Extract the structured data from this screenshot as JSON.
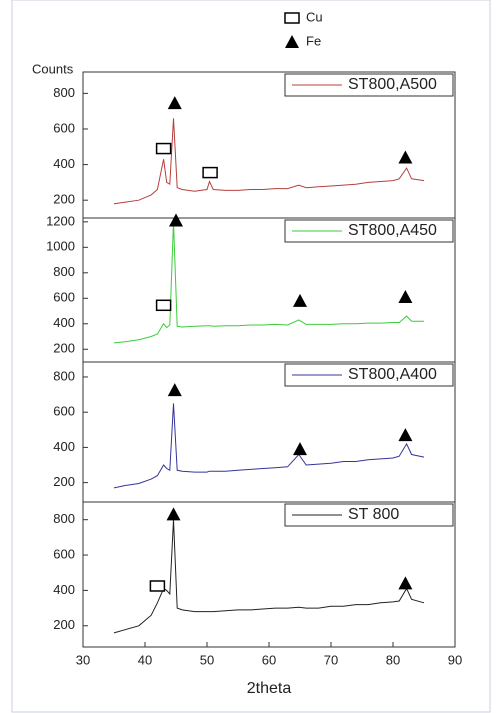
{
  "chart_data": [
    {
      "type": "line",
      "y_label": "Counts",
      "marker_legend": [
        {
          "name": "Cu",
          "marker": "square"
        },
        {
          "name": "Fe",
          "marker": "triangle"
        }
      ],
      "xlim": [
        30,
        90
      ],
      "ylim": [
        100,
        920
      ],
      "yticks": [
        200,
        400,
        600,
        800
      ],
      "series": [
        {
          "name": "ST800,A500",
          "color": "#b5403c",
          "x": [
            35,
            37,
            39,
            41,
            42,
            43,
            43.5,
            44,
            44.6,
            45.2,
            46,
            48,
            50,
            50.4,
            51,
            53,
            55,
            57,
            59,
            61,
            63,
            64.8,
            66,
            68,
            70,
            72,
            74,
            76,
            78,
            80,
            81,
            82.2,
            83,
            85
          ],
          "values": [
            180,
            190,
            200,
            230,
            260,
            430,
            300,
            290,
            660,
            270,
            260,
            250,
            260,
            305,
            260,
            255,
            255,
            260,
            260,
            265,
            265,
            285,
            270,
            275,
            280,
            285,
            290,
            300,
            305,
            310,
            320,
            380,
            320,
            310
          ]
        }
      ],
      "annotations": [
        {
          "marker": "Cu",
          "x": 43,
          "y": 490
        },
        {
          "marker": "Fe",
          "x": 44.8,
          "y": 745
        },
        {
          "marker": "Cu",
          "x": 50.5,
          "y": 355
        },
        {
          "marker": "Fe",
          "x": 82,
          "y": 440
        }
      ]
    },
    {
      "type": "line",
      "xlim": [
        30,
        90
      ],
      "ylim": [
        100,
        1230
      ],
      "yticks": [
        200,
        400,
        600,
        800,
        1000,
        1200
      ],
      "series": [
        {
          "name": "ST800,A450",
          "color": "#3ccc3c",
          "x": [
            35,
            37,
            39,
            41,
            42,
            43,
            43.5,
            44,
            44.6,
            45.2,
            46,
            48,
            50,
            50.4,
            51,
            53,
            55,
            57,
            59,
            61,
            63,
            64.8,
            66,
            68,
            70,
            72,
            74,
            76,
            78,
            80,
            81,
            82.2,
            83,
            85
          ],
          "values": [
            250,
            260,
            275,
            300,
            320,
            400,
            370,
            390,
            1200,
            380,
            375,
            380,
            385,
            385,
            380,
            385,
            385,
            390,
            390,
            395,
            390,
            430,
            395,
            395,
            395,
            400,
            400,
            405,
            405,
            410,
            410,
            460,
            420,
            420
          ]
        }
      ],
      "annotations": [
        {
          "marker": "Cu",
          "x": 43,
          "y": 545
        },
        {
          "marker": "Fe",
          "x": 45,
          "y": 1210
        },
        {
          "marker": "Fe",
          "x": 65,
          "y": 580
        },
        {
          "marker": "Fe",
          "x": 82,
          "y": 610
        }
      ]
    },
    {
      "type": "line",
      "xlim": [
        30,
        90
      ],
      "ylim": [
        90,
        885
      ],
      "yticks": [
        200,
        400,
        600,
        800
      ],
      "series": [
        {
          "name": "ST800,A400",
          "color": "#34349a",
          "x": [
            35,
            37,
            39,
            41,
            42,
            43,
            43.5,
            44,
            44.6,
            45.2,
            46,
            48,
            50,
            50.4,
            51,
            53,
            55,
            57,
            59,
            61,
            63,
            64.8,
            66,
            68,
            70,
            72,
            74,
            76,
            78,
            80,
            81,
            82.2,
            83,
            85
          ],
          "values": [
            170,
            185,
            195,
            220,
            240,
            300,
            280,
            270,
            650,
            270,
            265,
            260,
            260,
            265,
            265,
            265,
            270,
            275,
            280,
            285,
            290,
            360,
            300,
            305,
            310,
            320,
            320,
            330,
            335,
            340,
            350,
            420,
            360,
            345
          ]
        }
      ],
      "annotations": [
        {
          "marker": "Fe",
          "x": 44.8,
          "y": 725
        },
        {
          "marker": "Fe",
          "x": 65,
          "y": 390
        },
        {
          "marker": "Fe",
          "x": 82,
          "y": 470
        }
      ]
    },
    {
      "type": "line",
      "x_label": "2theta",
      "xlim": [
        30,
        90
      ],
      "xticks": [
        30,
        40,
        50,
        60,
        70,
        80,
        90
      ],
      "ylim": [
        80,
        900
      ],
      "yticks": [
        200,
        400,
        600,
        800
      ],
      "series": [
        {
          "name": "ST 800",
          "color": "#222222",
          "x": [
            35,
            37,
            39,
            41,
            42,
            43,
            43.5,
            44,
            44.6,
            45.2,
            46,
            48,
            50,
            50.4,
            51,
            53,
            55,
            57,
            59,
            61,
            63,
            64.8,
            66,
            68,
            70,
            72,
            74,
            76,
            78,
            80,
            81,
            82.2,
            83,
            85
          ],
          "values": [
            160,
            180,
            200,
            260,
            330,
            410,
            400,
            380,
            800,
            300,
            290,
            280,
            280,
            280,
            280,
            285,
            290,
            290,
            295,
            300,
            300,
            305,
            300,
            300,
            310,
            310,
            320,
            320,
            330,
            335,
            340,
            410,
            350,
            330
          ]
        }
      ],
      "annotations": [
        {
          "marker": "Fe",
          "x": 44.6,
          "y": 830
        },
        {
          "marker": "Cu",
          "x": 42,
          "y": 425
        },
        {
          "marker": "Fe",
          "x": 82,
          "y": 440
        }
      ]
    }
  ]
}
